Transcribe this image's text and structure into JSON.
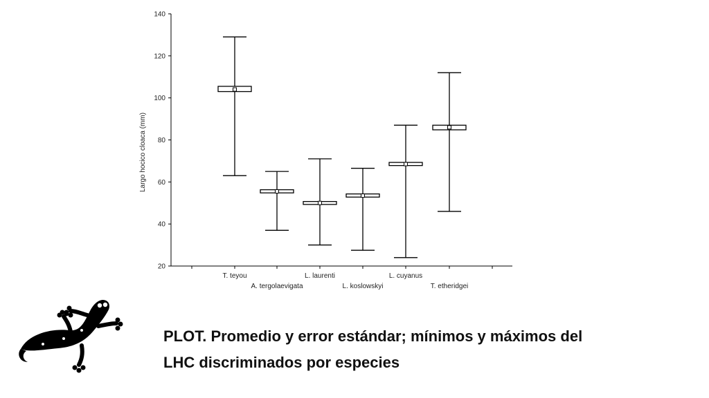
{
  "chart_data": {
    "type": "box",
    "title": "",
    "xlabel": "",
    "ylabel": "Largo hocico cloaca (mm)",
    "ylim": [
      20,
      140
    ],
    "yticks": [
      20,
      40,
      60,
      80,
      100,
      120,
      140
    ],
    "grid": false,
    "legend": "none",
    "categories": [
      "T. teyou",
      "A. tergolaevigata",
      "L. laurenti",
      "L. koslowskyi",
      "L. cuyanus",
      "T. etheridgei"
    ],
    "series": [
      {
        "mean": [
          104,
          55.5,
          50,
          53.5,
          68.5,
          86
        ],
        "se_low": [
          103,
          54.8,
          49.3,
          52.8,
          67.8,
          84.8
        ],
        "se_high": [
          105.5,
          56.3,
          50.7,
          54.3,
          69.3,
          87
        ],
        "min": [
          63,
          37,
          30,
          27.5,
          24,
          46
        ],
        "max": [
          129,
          65,
          71,
          66.5,
          87,
          112
        ]
      }
    ]
  },
  "caption": {
    "line1": "PLOT. Promedio y error estándar; mínimos y máximos del",
    "line2": "LHC discriminados por especies"
  },
  "icons": {
    "logo": "gecko-icon"
  },
  "colors": {
    "ink": "#000000"
  }
}
